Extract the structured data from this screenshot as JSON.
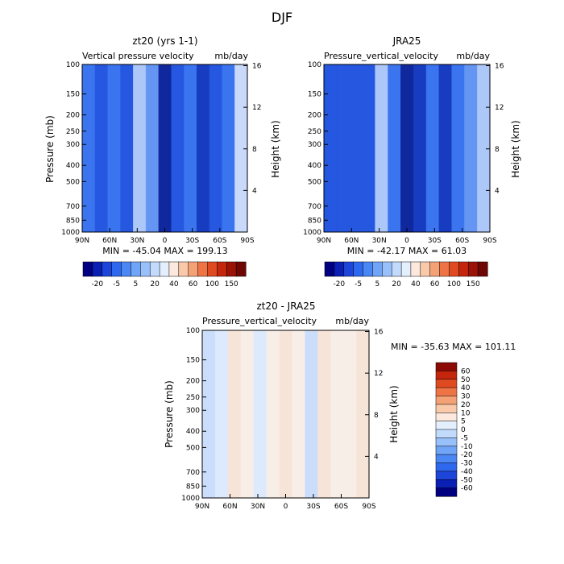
{
  "page_title": "DJF",
  "colors": {
    "panel_cmap": [
      "#000080",
      "#0a1fb4",
      "#1e45d9",
      "#2e68ee",
      "#4a86f4",
      "#6fa4f7",
      "#98c0fa",
      "#c2dafc",
      "#e4effe",
      "#fce8dc",
      "#f9c9aa",
      "#f5a176",
      "#ee7445",
      "#e04a20",
      "#c4260d",
      "#9b1206",
      "#6e0603"
    ],
    "diff_cmap": [
      "#000080",
      "#0a1fb4",
      "#1e45d9",
      "#2e68ee",
      "#4a86f4",
      "#6fa4f7",
      "#98c0fa",
      "#c2dafc",
      "#e4effe",
      "#fce8dc",
      "#f9c9aa",
      "#f5a176",
      "#ee7445",
      "#e04a20",
      "#c4260d",
      "#8b0a05"
    ]
  },
  "chart_data": [
    {
      "type": "heatmap",
      "title": "zt20 (yrs 1-1)",
      "subtitle_left": "Vertical pressure velocity",
      "subtitle_right": "mb/day",
      "xlabel": "",
      "ylabel": "Pressure (mb)",
      "ylabel_right": "Height (km)",
      "x_ticks": [
        "90N",
        "60N",
        "30N",
        "0",
        "30S",
        "60S",
        "90S"
      ],
      "y_ticks": [
        "100",
        "150",
        "200",
        "250",
        "300",
        "400",
        "500",
        "700",
        "850",
        "1000"
      ],
      "y_ticks_right": [
        "16",
        "12",
        "8",
        "4"
      ],
      "ylim": [
        1000,
        100
      ],
      "y_scale": "log",
      "stats": "MIN = -45.04   MAX = 199.13",
      "colorbar_labels": [
        "-20",
        "-5",
        "5",
        "20",
        "40",
        "60",
        "100",
        "150"
      ],
      "levels": [
        -45.04,
        -20,
        -5,
        5,
        20,
        40,
        60,
        100,
        150,
        199.13
      ],
      "x": [
        90,
        75,
        60,
        45,
        30,
        15,
        0,
        -15,
        -30,
        -45,
        -60,
        -75,
        -90
      ],
      "column_values": [
        -4,
        -6,
        -5,
        -7,
        3,
        -2,
        -14,
        -8,
        -4,
        -10,
        -6,
        -3,
        6
      ]
    },
    {
      "type": "heatmap",
      "title": "JRA25",
      "subtitle_left": "Pressure_vertical_velocity",
      "subtitle_right": "mb/day",
      "xlabel": "",
      "ylabel": "",
      "ylabel_right": "Height (km)",
      "x_ticks": [
        "90N",
        "60N",
        "30N",
        "0",
        "30S",
        "60S",
        "90S"
      ],
      "y_ticks": [
        "100",
        "150",
        "200",
        "250",
        "300",
        "400",
        "500",
        "700",
        "850",
        "1000"
      ],
      "y_ticks_right": [
        "16",
        "12",
        "8",
        "4"
      ],
      "ylim": [
        1000,
        100
      ],
      "y_scale": "log",
      "stats": "MIN = -42.17   MAX =  61.03",
      "colorbar_labels": [
        "-20",
        "-5",
        "5",
        "20",
        "40",
        "60",
        "100",
        "150"
      ],
      "levels": [
        -42.17,
        -20,
        -5,
        5,
        20,
        40,
        60,
        100,
        150,
        61.03
      ],
      "x": [
        90,
        75,
        60,
        45,
        30,
        15,
        0,
        -15,
        -30,
        -45,
        -60,
        -75,
        -90
      ],
      "column_values": [
        -6,
        -7,
        -6,
        -8,
        2,
        -3,
        -16,
        -9,
        -3,
        -9,
        -5,
        -2,
        4
      ]
    },
    {
      "type": "heatmap",
      "title": "zt20 - JRA25",
      "subtitle_left": "Pressure_vertical_velocity",
      "subtitle_right": "mb/day",
      "xlabel": "",
      "ylabel": "Pressure (mb)",
      "ylabel_right": "Height (km)",
      "x_ticks": [
        "90N",
        "60N",
        "30N",
        "0",
        "30S",
        "60S",
        "90S"
      ],
      "y_ticks": [
        "100",
        "150",
        "200",
        "250",
        "300",
        "400",
        "500",
        "700",
        "850",
        "1000"
      ],
      "y_ticks_right": [
        "16",
        "12",
        "8",
        "4"
      ],
      "ylim": [
        1000,
        100
      ],
      "y_scale": "log",
      "stats": "MIN = -35.63   MAX = 101.11",
      "colorbar_labels": [
        "60",
        "50",
        "40",
        "30",
        "20",
        "10",
        "5",
        "0",
        "-5",
        "-10",
        "-20",
        "-30",
        "-40",
        "-50",
        "-60"
      ],
      "x": [
        90,
        75,
        60,
        45,
        30,
        15,
        0,
        -15,
        -30,
        -45,
        -60,
        -75,
        -90
      ],
      "column_values": [
        -2,
        -1,
        3,
        2,
        -1,
        2,
        4,
        1,
        -2,
        3,
        1,
        2,
        3
      ]
    }
  ]
}
